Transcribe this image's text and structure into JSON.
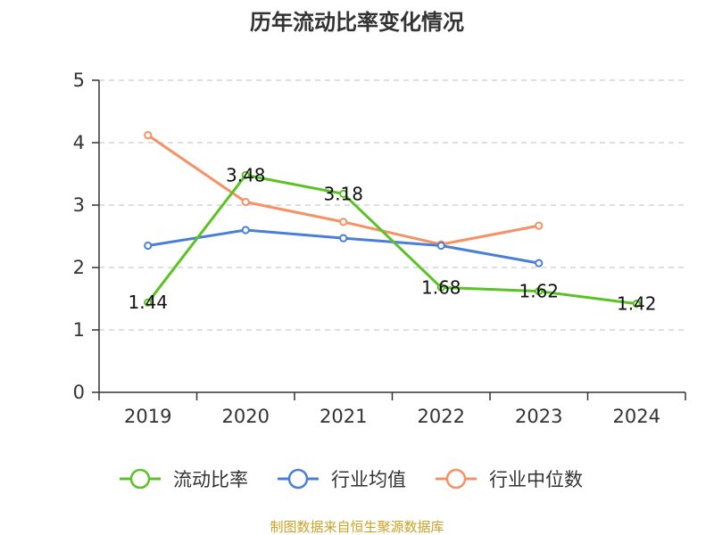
{
  "chart_data": {
    "type": "line",
    "title": "历年流动比率变化情况",
    "categories": [
      "2019",
      "2020",
      "2021",
      "2022",
      "2023",
      "2024"
    ],
    "ylim": [
      0,
      5
    ],
    "yticks": [
      0,
      1,
      2,
      3,
      4,
      5
    ],
    "grid": true,
    "legend_position": "bottom",
    "series": [
      {
        "name": "流动比率",
        "color": "#5bc225",
        "values": [
          1.44,
          3.48,
          3.18,
          1.68,
          1.62,
          1.42
        ],
        "labels": [
          "1.44",
          "3.48",
          "3.18",
          "1.68",
          "1.62",
          "1.42"
        ]
      },
      {
        "name": "行业均值",
        "color": "#4a7fd8",
        "values": [
          2.35,
          2.6,
          2.47,
          2.35,
          2.07,
          null
        ]
      },
      {
        "name": "行业中位数",
        "color": "#f59163",
        "values": [
          4.12,
          3.05,
          2.73,
          2.37,
          2.67,
          null
        ]
      }
    ],
    "source": "制图数据来自恒生聚源数据库"
  }
}
